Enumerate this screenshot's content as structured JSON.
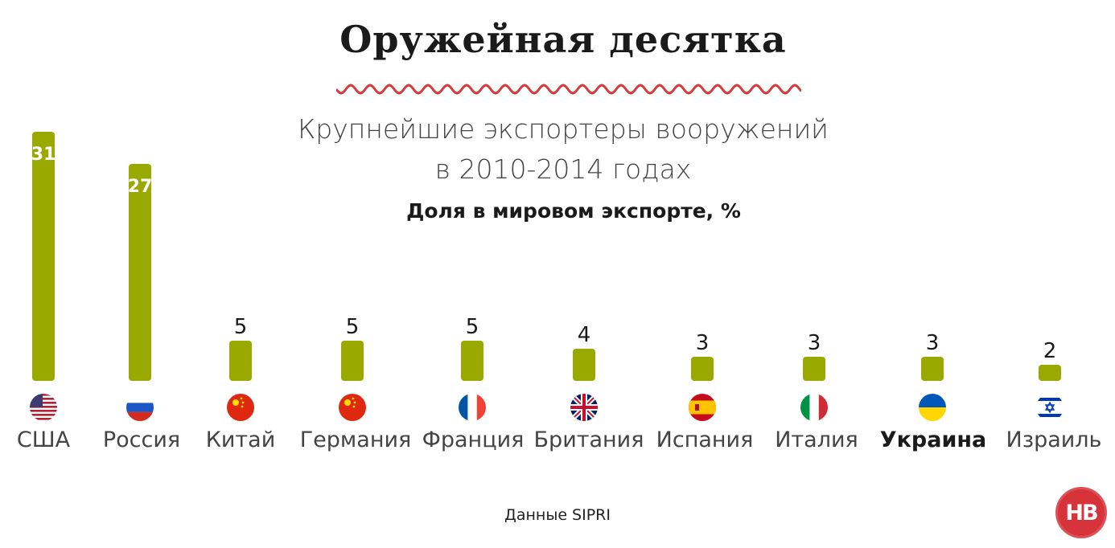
{
  "header": {
    "title": "Оружейная десятка",
    "subtitle_line1": "Крупнейшие экспортеры вооружений",
    "subtitle_line2": "в 2010-2014 годах"
  },
  "chart_data": {
    "type": "bar",
    "title": "Оружейная десятка",
    "subtitle": "Крупнейшие экспортеры вооружений в 2010-2014 годах",
    "ylabel": "Доля в мировом экспорте, %",
    "xlabel": "",
    "categories": [
      "США",
      "Россия",
      "Китай",
      "Германия",
      "Франция",
      "Британия",
      "Испания",
      "Италия",
      "Украина",
      "Израиль"
    ],
    "values": [
      31,
      27,
      5,
      5,
      5,
      4,
      3,
      3,
      3,
      2
    ],
    "highlighted_category": "Украина",
    "flags": [
      "us-flag-icon",
      "ru-flag-icon",
      "cn-flag-icon",
      "de-flag-icon",
      "fr-flag-icon",
      "gb-flag-icon",
      "es-flag-icon",
      "it-flag-icon",
      "ua-flag-icon",
      "il-flag-icon"
    ],
    "bar_color": "#9aa900",
    "grid": false,
    "legend": "none"
  },
  "footer": {
    "source": "Данные SIPRI",
    "logo_text": "НВ"
  },
  "colors": {
    "accent_wave": "#d7393a",
    "bar": "#9aa900",
    "logo_bg": "#d6333b"
  }
}
